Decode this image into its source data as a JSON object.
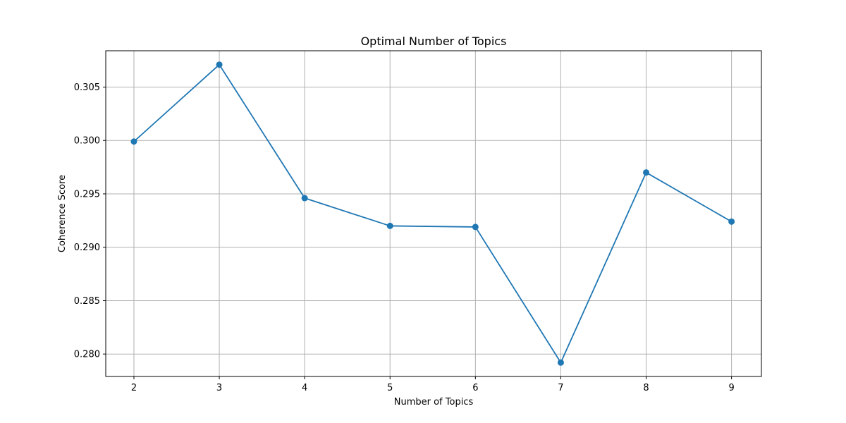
{
  "chart_data": {
    "type": "line",
    "title": "Optimal Number of Topics",
    "xlabel": "Number of Topics",
    "ylabel": "Coherence Score",
    "x": [
      2,
      3,
      4,
      5,
      6,
      7,
      8,
      9
    ],
    "series": [
      {
        "values": [
          0.2999,
          0.3071,
          0.2946,
          0.292,
          0.2919,
          0.2792,
          0.297,
          0.2924
        ],
        "color": "#1f77b4",
        "marker": "circle"
      }
    ],
    "xlim": [
      1.67,
      9.35
    ],
    "ylim": [
      0.2779,
      0.3084
    ],
    "xticks": [
      "2",
      "3",
      "4",
      "5",
      "6",
      "7",
      "8",
      "9"
    ],
    "yticks": [
      "0.280",
      "0.285",
      "0.290",
      "0.295",
      "0.300",
      "0.305"
    ],
    "ytick_values": [
      0.28,
      0.285,
      0.29,
      0.295,
      0.3,
      0.305
    ],
    "grid": true
  }
}
